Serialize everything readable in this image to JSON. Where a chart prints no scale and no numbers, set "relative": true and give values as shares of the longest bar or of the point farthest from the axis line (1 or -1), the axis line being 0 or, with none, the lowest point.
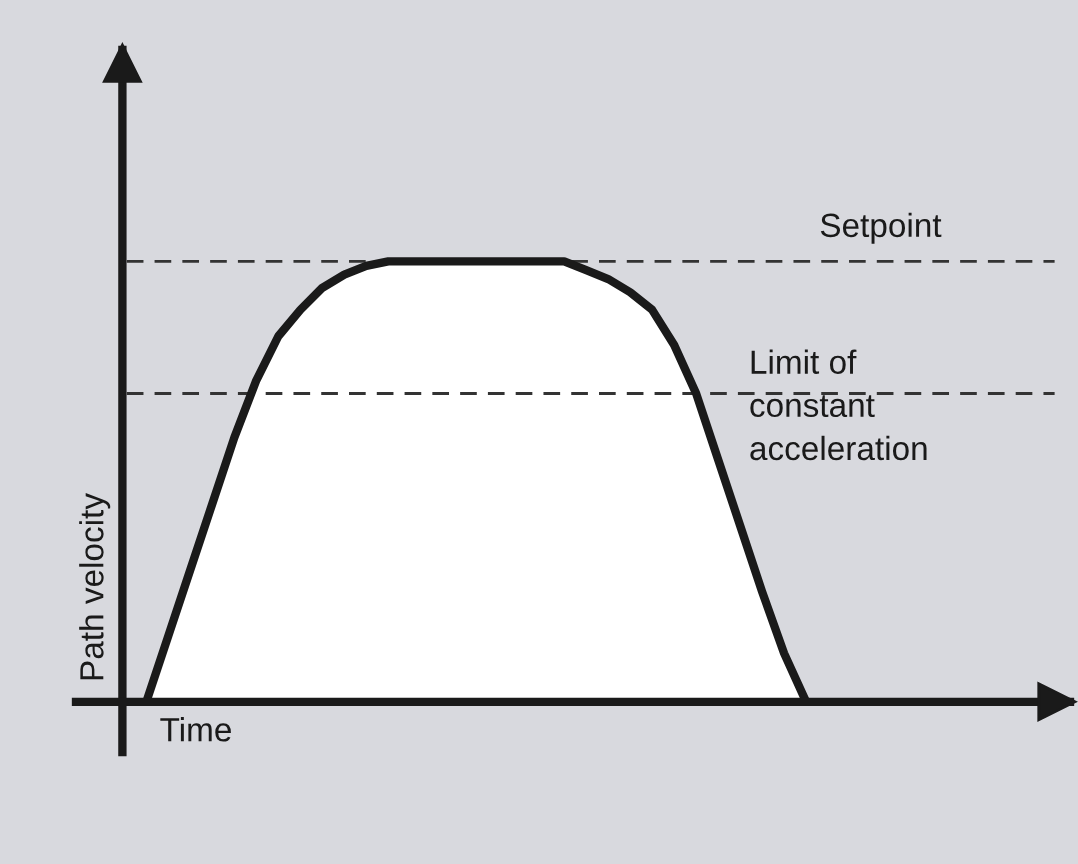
{
  "chart_data": {
    "type": "line",
    "relative": true,
    "xlabel": "Time",
    "ylabel": "Path velocity",
    "categories": [
      null,
      null,
      null,
      null,
      null,
      null,
      null,
      null,
      null,
      null,
      null,
      null,
      null,
      null,
      null,
      null,
      null,
      null,
      null,
      null,
      null,
      null,
      null,
      null,
      null,
      null,
      null,
      null,
      null,
      null,
      null
    ],
    "series": [
      {
        "color": "#1a1a1a",
        "values": [
          0,
          0.15,
          0.3,
          0.45,
          0.6,
          0.73,
          0.83,
          0.89,
          0.94,
          0.97,
          0.99,
          1,
          1,
          1,
          1,
          1,
          1,
          1,
          1,
          1,
          0.98,
          0.96,
          0.93,
          0.89,
          0.81,
          0.7,
          0.55,
          0.4,
          0.25,
          0.11,
          0
        ]
      }
    ],
    "ref_lines": [
      {
        "axis": "y",
        "value": 1,
        "label": "Setpoint",
        "color": "#333333",
        "line_style": "dashed"
      },
      {
        "axis": "y",
        "value": 0.7,
        "label": "Limit of\nconstant\nacceleration",
        "color": "#333333",
        "line_style": "dashed"
      }
    ],
    "legend": false
  }
}
